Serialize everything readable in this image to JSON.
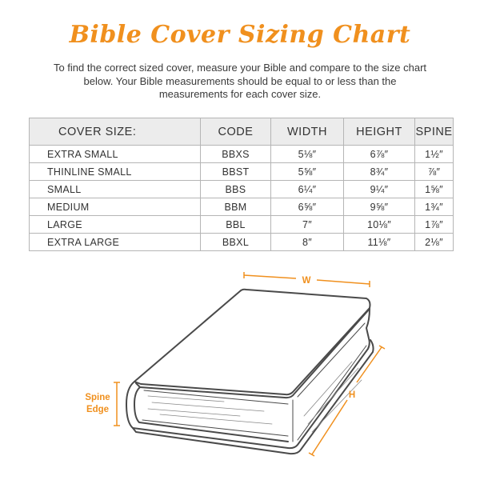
{
  "title": "Bible Cover Sizing Chart",
  "intro": "To find the correct sized cover, measure your Bible and compare to the size chart below. Your Bible measurements should be equal to or less than the measurements for each cover size.",
  "table": {
    "headers": [
      "COVER SIZE:",
      "CODE",
      "WIDTH",
      "HEIGHT",
      "SPINE"
    ],
    "rows": [
      [
        "EXTRA SMALL",
        "BBXS",
        "5⅛″",
        "6⅞″",
        "1½″"
      ],
      [
        "THINLINE SMALL",
        "BBST",
        "5⅝″",
        "8¾″",
        "⅞″"
      ],
      [
        "SMALL",
        "BBS",
        "6¼″",
        "9¼″",
        "1⅝″"
      ],
      [
        "MEDIUM",
        "BBM",
        "6⅝″",
        "9⅝″",
        "1¾″"
      ],
      [
        "LARGE",
        "BBL",
        "7″",
        "10⅛″",
        "1⅞″"
      ],
      [
        "EXTRA LARGE",
        "BBXL",
        "8″",
        "11⅛″",
        "2⅛″"
      ]
    ]
  },
  "diagram": {
    "width_label": "W",
    "height_label": "H",
    "spine_label_line1": "Spine",
    "spine_label_line2": "Edge"
  },
  "colors": {
    "accent": "#f0901e",
    "outline": "#4a4a4a",
    "header_bg": "#ececec"
  }
}
